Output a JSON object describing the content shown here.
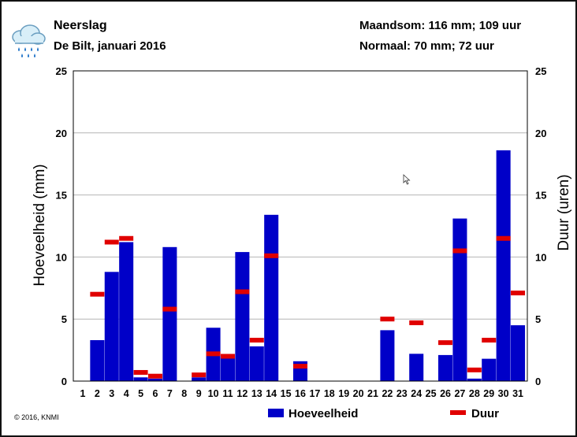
{
  "header": {
    "title": "Neerslag",
    "subtitle": "De Bilt, januari 2016",
    "month_total": "Maandsom: 116 mm; 109 uur",
    "normal": "Normaal: 70 mm; 72 uur"
  },
  "icon": "rain-cloud-icon",
  "copyright": "© 2016, KNMI",
  "colors": {
    "bar": "#0000c8",
    "duration": "#e00000",
    "grid": "#b4b4b4"
  },
  "chart_data": {
    "type": "bar",
    "categories": [
      "1",
      "2",
      "3",
      "4",
      "5",
      "6",
      "7",
      "8",
      "9",
      "10",
      "11",
      "12",
      "13",
      "14",
      "15",
      "16",
      "17",
      "18",
      "19",
      "20",
      "21",
      "22",
      "23",
      "24",
      "25",
      "26",
      "27",
      "28",
      "29",
      "30",
      "31"
    ],
    "series": [
      {
        "name": "Hoeveelheid",
        "type": "bar",
        "axis": "left",
        "values": [
          0,
          3.3,
          8.8,
          11.2,
          0.3,
          0.2,
          10.8,
          0,
          0.3,
          4.3,
          1.9,
          10.4,
          2.8,
          13.4,
          0,
          1.6,
          0,
          0,
          0,
          0,
          0,
          4.1,
          0,
          2.2,
          0,
          2.1,
          13.1,
          0.2,
          1.8,
          18.6,
          4.5
        ]
      },
      {
        "name": "Duur",
        "type": "marker",
        "axis": "right",
        "values": [
          null,
          7.0,
          11.2,
          11.5,
          0.7,
          0.4,
          5.8,
          null,
          0.5,
          2.2,
          2.0,
          7.2,
          3.3,
          10.1,
          null,
          1.2,
          null,
          null,
          null,
          null,
          null,
          5.0,
          null,
          4.7,
          null,
          3.1,
          10.5,
          0.9,
          3.3,
          11.5,
          7.1
        ]
      }
    ],
    "ylabel": "Hoeveelheid (mm)",
    "y2label": "Duur (uren)",
    "ylim": [
      0,
      25
    ],
    "y2lim": [
      0,
      25
    ],
    "yticks": [
      0,
      5,
      10,
      15,
      20,
      25
    ],
    "grid": true,
    "legend": {
      "placement": "bottom",
      "items": [
        "Hoeveelheid",
        "Duur"
      ]
    }
  }
}
